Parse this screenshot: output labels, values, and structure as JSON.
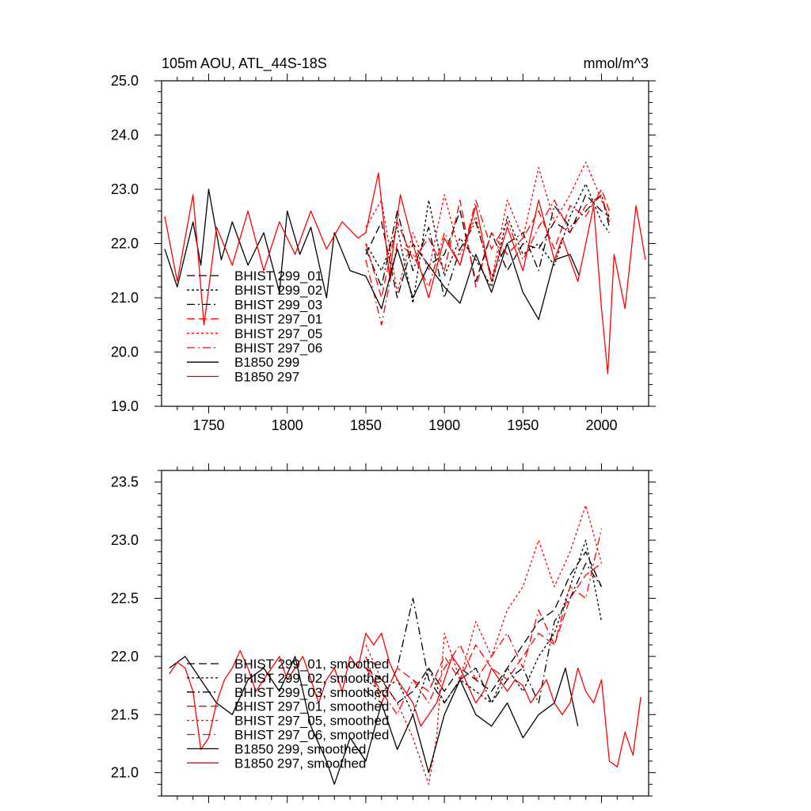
{
  "chart_data": [
    {
      "type": "line",
      "title": "105m AOU, ATL_44S-18S",
      "units": "mmol/m^3",
      "xlim": [
        1720,
        2030
      ],
      "ylim": [
        19.0,
        25.0
      ],
      "x_ticks": [
        1750,
        1800,
        1850,
        1900,
        1950,
        2000
      ],
      "y_ticks": [
        "19.0",
        "20.0",
        "21.0",
        "22.0",
        "23.0",
        "24.0",
        "25.0"
      ],
      "legend_position": "lower-left",
      "series": [
        {
          "name": "BHIST 299_01",
          "color": "#000000",
          "dash": "long-dash",
          "x": [
            1850,
            1860,
            1870,
            1880,
            1890,
            1900,
            1910,
            1920,
            1930,
            1940,
            1950,
            1960,
            1970,
            1980,
            1990,
            2000,
            2005
          ],
          "y": [
            21.8,
            22.4,
            21.0,
            22.0,
            21.6,
            21.8,
            22.6,
            21.3,
            22.2,
            21.5,
            22.0,
            21.9,
            22.4,
            22.2,
            22.9,
            22.6,
            22.5
          ]
        },
        {
          "name": "BHIST 299_02",
          "color": "#000000",
          "dash": "short-dash",
          "x": [
            1850,
            1860,
            1870,
            1880,
            1890,
            1900,
            1910,
            1920,
            1930,
            1940,
            1950,
            1960,
            1970,
            1980,
            1990,
            2000,
            2005
          ],
          "y": [
            22.0,
            21.5,
            22.3,
            20.9,
            22.8,
            21.4,
            22.1,
            21.7,
            21.2,
            22.5,
            21.8,
            22.0,
            21.6,
            22.5,
            23.1,
            22.4,
            22.2
          ]
        },
        {
          "name": "BHIST 299_03",
          "color": "#000000",
          "dash": "dash-dot",
          "x": [
            1850,
            1860,
            1870,
            1880,
            1890,
            1900,
            1910,
            1920,
            1930,
            1940,
            1950,
            1960,
            1970,
            1980,
            1990,
            2000,
            2005
          ],
          "y": [
            21.9,
            21.2,
            22.6,
            21.5,
            22.3,
            21.0,
            21.9,
            22.4,
            21.4,
            22.0,
            22.2,
            21.5,
            22.7,
            22.3,
            22.6,
            22.9,
            22.3
          ]
        },
        {
          "name": "BHIST 297_01",
          "color": "#ff0000",
          "dash": "long-dash",
          "x": [
            1850,
            1860,
            1870,
            1880,
            1890,
            1900,
            1910,
            1920,
            1930,
            1940,
            1950,
            1960,
            1970,
            1980,
            1990,
            2000,
            2005
          ],
          "y": [
            22.0,
            21.0,
            22.4,
            21.7,
            22.1,
            21.5,
            22.8,
            21.2,
            22.2,
            21.8,
            22.1,
            22.6,
            21.9,
            22.7,
            22.5,
            23.0,
            22.6
          ]
        },
        {
          "name": "BHIST 297_05",
          "color": "#ff0000",
          "dash": "short-dash",
          "x": [
            1850,
            1860,
            1870,
            1880,
            1890,
            1900,
            1910,
            1920,
            1930,
            1940,
            1950,
            1960,
            1970,
            1980,
            1990,
            2000,
            2005
          ],
          "y": [
            22.3,
            22.8,
            21.1,
            22.2,
            21.5,
            22.9,
            21.8,
            22.5,
            21.3,
            22.8,
            22.1,
            23.4,
            22.4,
            22.9,
            23.5,
            22.8,
            22.5
          ]
        },
        {
          "name": "BHIST 297_06",
          "color": "#ff0000",
          "dash": "dash-dot",
          "x": [
            1850,
            1860,
            1870,
            1880,
            1890,
            1900,
            1910,
            1920,
            1930,
            1940,
            1950,
            1960,
            1970,
            1980,
            1990,
            2000,
            2005
          ],
          "y": [
            21.7,
            20.5,
            22.0,
            21.8,
            21.2,
            22.2,
            21.6,
            22.8,
            21.9,
            22.4,
            21.7,
            22.3,
            22.8,
            22.2,
            22.7,
            22.9,
            22.4
          ]
        },
        {
          "name": "B1850 299",
          "color": "#000000",
          "dash": "solid",
          "x": [
            1722,
            1730,
            1740,
            1745,
            1750,
            1758,
            1765,
            1775,
            1785,
            1795,
            1800,
            1808,
            1815,
            1825,
            1830,
            1840,
            1850,
            1860,
            1870,
            1880,
            1890,
            1900,
            1910,
            1920,
            1930,
            1940,
            1950,
            1960,
            1970,
            1980,
            1986
          ],
          "y": [
            21.9,
            21.2,
            22.4,
            21.6,
            23.0,
            21.7,
            22.4,
            21.6,
            22.2,
            21.1,
            22.6,
            21.8,
            22.3,
            21.0,
            22.2,
            21.5,
            21.4,
            20.8,
            21.9,
            21.0,
            21.6,
            21.2,
            20.9,
            21.8,
            21.1,
            22.0,
            21.1,
            20.6,
            21.7,
            21.8,
            21.4
          ]
        },
        {
          "name": "B1850 297",
          "color": "#ff0000",
          "dash": "solid",
          "x": [
            1722,
            1730,
            1740,
            1747,
            1755,
            1765,
            1775,
            1785,
            1795,
            1805,
            1815,
            1825,
            1835,
            1845,
            1850,
            1858,
            1865,
            1872,
            1880,
            1890,
            1900,
            1910,
            1920,
            1930,
            1940,
            1950,
            1960,
            1970,
            1975,
            1985,
            1995,
            2000,
            2004,
            2008,
            2015,
            2022,
            2028
          ],
          "y": [
            22.5,
            21.3,
            22.9,
            20.5,
            22.3,
            21.6,
            22.6,
            21.5,
            22.4,
            21.8,
            22.6,
            21.9,
            22.4,
            22.1,
            22.2,
            23.3,
            21.4,
            22.9,
            22.0,
            21.0,
            22.1,
            21.6,
            22.7,
            21.3,
            22.3,
            21.5,
            22.8,
            21.7,
            22.1,
            21.3,
            22.7,
            20.8,
            19.6,
            21.8,
            20.8,
            22.7,
            21.7
          ]
        }
      ]
    },
    {
      "type": "line",
      "xlim": [
        1720,
        2030
      ],
      "ylim": [
        20.8,
        23.6
      ],
      "x_ticks": [
        1750,
        1800,
        1850,
        1900,
        1950,
        2000
      ],
      "y_ticks": [
        "21.0",
        "21.5",
        "22.0",
        "22.5",
        "23.0",
        "23.5"
      ],
      "legend_position": "lower-left",
      "series": [
        {
          "name": "BHIST 299_01, smoothed",
          "color": "#000000",
          "dash": "long-dash",
          "x": [
            1850,
            1860,
            1870,
            1880,
            1890,
            1900,
            1910,
            1920,
            1930,
            1940,
            1950,
            1960,
            1970,
            1980,
            1990,
            2000
          ],
          "y": [
            21.9,
            21.8,
            21.6,
            21.7,
            21.9,
            21.7,
            21.9,
            21.8,
            21.7,
            21.9,
            22.1,
            22.3,
            22.4,
            22.7,
            22.9,
            22.6
          ]
        },
        {
          "name": "BHIST 299_02, smoothed",
          "color": "#000000",
          "dash": "short-dash",
          "x": [
            1850,
            1860,
            1870,
            1880,
            1890,
            1900,
            1910,
            1920,
            1930,
            1940,
            1950,
            1960,
            1970,
            1980,
            1990,
            2000
          ],
          "y": [
            21.8,
            21.7,
            21.8,
            21.5,
            21.9,
            21.6,
            21.8,
            21.7,
            21.6,
            21.9,
            21.7,
            22.0,
            22.2,
            22.6,
            23.0,
            22.3
          ]
        },
        {
          "name": "BHIST 299_03, smoothed",
          "color": "#000000",
          "dash": "dash-dot",
          "x": [
            1850,
            1860,
            1870,
            1880,
            1890,
            1900,
            1910,
            1920,
            1930,
            1940,
            1950,
            1960,
            1970,
            1980,
            1990,
            2000
          ],
          "y": [
            21.7,
            21.6,
            21.9,
            22.5,
            21.8,
            21.6,
            21.8,
            21.9,
            21.6,
            21.8,
            21.9,
            21.6,
            22.3,
            22.5,
            22.8,
            22.6
          ]
        },
        {
          "name": "BHIST 297_01, smoothed",
          "color": "#ff0000",
          "dash": "long-dash",
          "x": [
            1850,
            1860,
            1870,
            1880,
            1890,
            1900,
            1910,
            1920,
            1930,
            1940,
            1950,
            1960,
            1970,
            1980,
            1990,
            2000
          ],
          "y": [
            22.0,
            21.6,
            21.9,
            21.8,
            21.7,
            22.0,
            21.8,
            22.1,
            21.9,
            21.8,
            22.0,
            22.2,
            22.1,
            22.5,
            22.7,
            22.8
          ]
        },
        {
          "name": "BHIST 297_05, smoothed",
          "color": "#ff0000",
          "dash": "short-dash",
          "x": [
            1850,
            1860,
            1870,
            1880,
            1890,
            1895,
            1900,
            1910,
            1920,
            1930,
            1940,
            1950,
            1960,
            1970,
            1980,
            1990,
            2000
          ],
          "y": [
            22.1,
            21.8,
            21.6,
            21.3,
            20.9,
            21.3,
            22.2,
            21.8,
            22.3,
            22.0,
            22.4,
            22.6,
            23.0,
            22.6,
            22.9,
            23.3,
            22.8
          ]
        },
        {
          "name": "BHIST 297_06, smoothed",
          "color": "#ff0000",
          "dash": "dash-dot",
          "x": [
            1850,
            1860,
            1870,
            1880,
            1890,
            1900,
            1910,
            1920,
            1930,
            1940,
            1950,
            1960,
            1970,
            1980,
            1990,
            2000
          ],
          "y": [
            21.9,
            21.7,
            21.5,
            21.8,
            21.6,
            21.9,
            22.1,
            21.8,
            22.0,
            22.2,
            21.9,
            22.4,
            22.1,
            22.6,
            22.5,
            23.1
          ]
        },
        {
          "name": "B1850 299, smoothed",
          "color": "#000000",
          "dash": "solid",
          "x": [
            1725,
            1735,
            1745,
            1755,
            1765,
            1775,
            1785,
            1795,
            1805,
            1815,
            1825,
            1830,
            1840,
            1850,
            1860,
            1870,
            1880,
            1890,
            1900,
            1910,
            1920,
            1930,
            1940,
            1950,
            1960,
            1970,
            1977,
            1985
          ],
          "y": [
            21.9,
            22.0,
            21.8,
            21.6,
            21.5,
            21.8,
            21.9,
            21.7,
            22.0,
            21.4,
            21.1,
            20.9,
            21.3,
            21.1,
            21.6,
            21.2,
            21.5,
            21.0,
            21.5,
            21.8,
            21.5,
            21.4,
            21.6,
            21.3,
            21.5,
            21.6,
            21.9,
            21.4
          ]
        },
        {
          "name": "B1850 297, smoothed",
          "color": "#ff0000",
          "dash": "solid",
          "x": [
            1725,
            1730,
            1735,
            1740,
            1745,
            1750,
            1755,
            1760,
            1765,
            1770,
            1775,
            1780,
            1785,
            1790,
            1795,
            1800,
            1805,
            1810,
            1815,
            1820,
            1825,
            1830,
            1835,
            1840,
            1845,
            1850,
            1855,
            1860,
            1865,
            1870,
            1875,
            1880,
            1885,
            1890,
            1895,
            1900,
            1905,
            1910,
            1915,
            1920,
            1925,
            1930,
            1935,
            1940,
            1945,
            1950,
            1955,
            1960,
            1965,
            1970,
            1975,
            1980,
            1985,
            1990,
            1995,
            2000,
            2005,
            2010,
            2015,
            2020,
            2025
          ],
          "y": [
            21.85,
            21.95,
            21.9,
            21.7,
            21.2,
            21.3,
            21.6,
            21.8,
            21.9,
            22.05,
            21.9,
            21.7,
            21.8,
            21.9,
            22.0,
            21.8,
            21.9,
            22.0,
            21.8,
            21.6,
            21.8,
            21.9,
            21.7,
            22.0,
            21.9,
            22.2,
            22.1,
            22.2,
            21.95,
            21.8,
            21.7,
            21.6,
            21.4,
            21.5,
            21.6,
            21.8,
            22.0,
            21.9,
            21.75,
            21.6,
            21.7,
            21.9,
            21.8,
            21.7,
            21.8,
            21.75,
            21.6,
            21.7,
            21.8,
            21.6,
            21.5,
            21.6,
            21.9,
            21.7,
            21.6,
            21.8,
            21.1,
            21.05,
            21.35,
            21.15,
            21.65
          ]
        }
      ]
    }
  ]
}
